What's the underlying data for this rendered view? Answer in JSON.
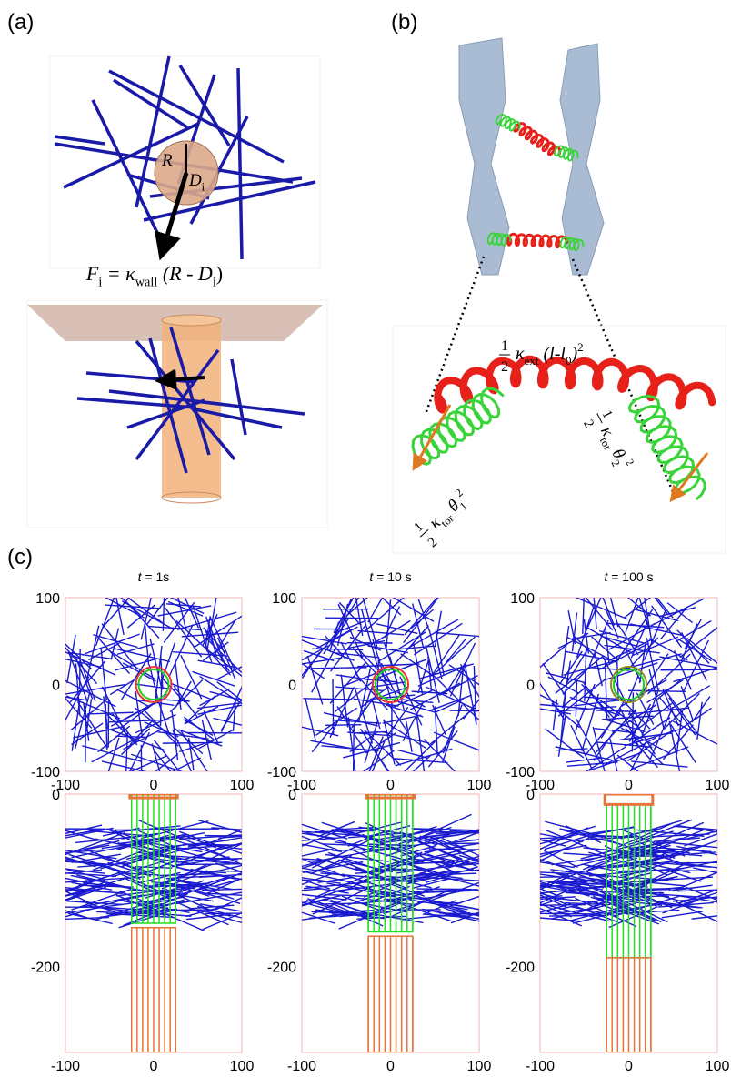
{
  "panel_a": {
    "label": "(a)",
    "R": "R",
    "D": [
      {
        "text": "D",
        "style": "it"
      },
      {
        "text": "i",
        "style": "sub"
      }
    ],
    "formula": [
      {
        "text": "F",
        "style": "it"
      },
      {
        "text": "i",
        "style": "sub"
      },
      {
        "text": " = κ",
        "style": "it"
      },
      {
        "text": "wall",
        "style": "sub"
      },
      {
        "text": " (R - D",
        "style": "it"
      },
      {
        "text": "i",
        "style": "sub"
      },
      {
        "text": ")",
        "style": "n"
      }
    ]
  },
  "panel_b": {
    "label": "(b)",
    "ext": {
      "frac": [
        "1",
        "2"
      ],
      "segments": [
        {
          "text": "κ",
          "style": "it"
        },
        {
          "text": "ext",
          "style": "sub"
        },
        {
          "text": " (l-l",
          "style": "it"
        },
        {
          "text": "0",
          "style": "sub"
        },
        {
          "text": ")",
          "style": "it"
        },
        {
          "text": "2",
          "style": "sup"
        }
      ]
    },
    "tor1": {
      "frac": [
        "1",
        "2"
      ],
      "segments": [
        {
          "text": "κ",
          "style": "it"
        },
        {
          "text": "tor",
          "style": "sub"
        },
        {
          "text": " θ",
          "style": "it"
        },
        {
          "text": "1",
          "style": "sub"
        },
        {
          "text": "2",
          "style": "sup"
        }
      ]
    },
    "tor2": {
      "frac": [
        "1",
        "2"
      ],
      "segments": [
        {
          "text": "κ",
          "style": "it"
        },
        {
          "text": "tor",
          "style": "sub"
        },
        {
          "text": " θ",
          "style": "it"
        },
        {
          "text": "2",
          "style": "sub"
        },
        {
          "text": "2",
          "style": "sup"
        }
      ]
    }
  },
  "panel_c": {
    "label": "(c)",
    "plots": [
      {
        "title": [
          {
            "text": "t",
            "style": "it"
          },
          {
            "text": " = 1s",
            "style": "n"
          }
        ],
        "xlim": [
          -100,
          100
        ],
        "ylim": [
          -100,
          100
        ],
        "xticks": [
          -100,
          0,
          100
        ],
        "yticks": [
          -100,
          0,
          100
        ]
      },
      {
        "title": [
          {
            "text": "t",
            "style": "it"
          },
          {
            "text": " = 10 s",
            "style": "n"
          }
        ],
        "xlim": [
          -100,
          100
        ],
        "ylim": [
          -100,
          100
        ],
        "xticks": [
          -100,
          0,
          100
        ],
        "yticks": [
          -100,
          0,
          100
        ]
      },
      {
        "title": [
          {
            "text": "t",
            "style": "it"
          },
          {
            "text": " = 100 s",
            "style": "n"
          }
        ],
        "xlim": [
          -100,
          100
        ],
        "ylim": [
          -100,
          100
        ],
        "xticks": [
          -100,
          0,
          100
        ],
        "yticks": [
          -100,
          0,
          100
        ]
      },
      {
        "xlim": [
          -100,
          100
        ],
        "ylim": [
          -300,
          0
        ],
        "xticks": [
          -100,
          0,
          100
        ],
        "yticks": [
          -200,
          0
        ]
      },
      {
        "xlim": [
          -100,
          100
        ],
        "ylim": [
          -300,
          0
        ],
        "xticks": [
          -100,
          0,
          100
        ],
        "yticks": [
          -200,
          0
        ]
      },
      {
        "xlim": [
          -100,
          100
        ],
        "ylim": [
          -300,
          0
        ],
        "xticks": [
          -100,
          0,
          100
        ],
        "yticks": [
          -200,
          0
        ]
      }
    ]
  }
}
